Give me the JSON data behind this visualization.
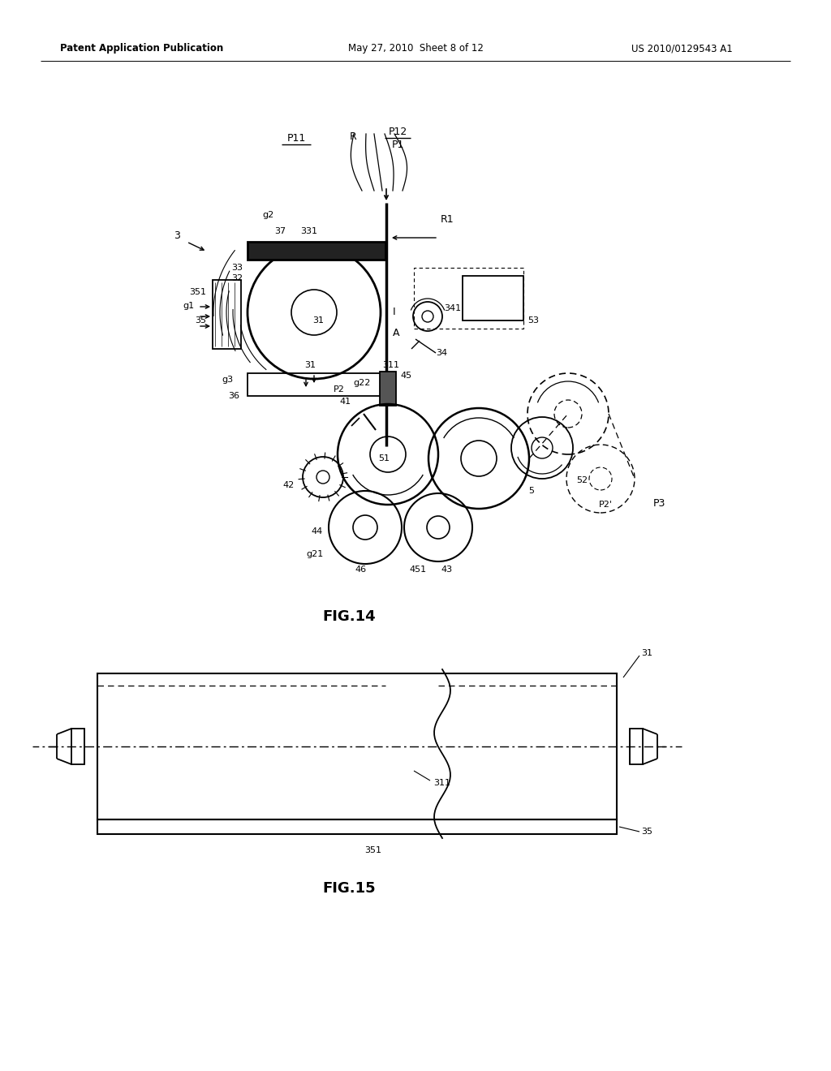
{
  "bg_color": "#ffffff",
  "header_left": "Patent Application Publication",
  "header_mid": "May 27, 2010  Sheet 8 of 12",
  "header_right": "US 2010/0129543 A1",
  "fig14_label": "FIG.14",
  "fig15_label": "FIG.15"
}
